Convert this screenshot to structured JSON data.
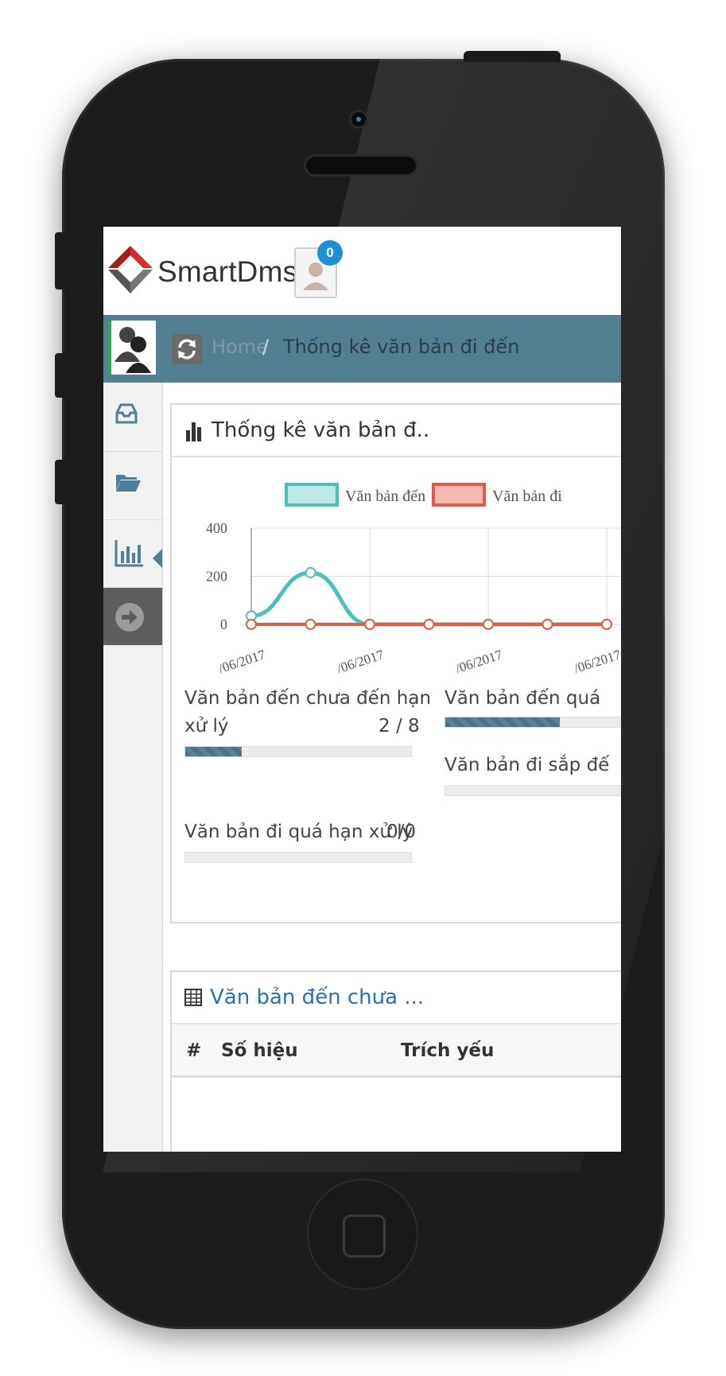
{
  "app": {
    "brand": "SmartDms",
    "notification_count": "0"
  },
  "breadcrumb": {
    "home": "Home",
    "separator": "/",
    "current": "Thống kê văn bản đi đến"
  },
  "stats_panel": {
    "title": "Thống kê văn bản đ..",
    "items": [
      {
        "label_line1": "Văn bản đến chưa đến hạn",
        "label_line2": "xử lý",
        "value": "2 / 8",
        "fraction": 0.25
      },
      {
        "label": "Văn bản đến quá",
        "fraction": 0.6
      },
      {
        "label": "Văn bản đi sắp đế",
        "fraction": 0
      },
      {
        "label": "Văn bản đi quá hạn xử lý",
        "value": "0/0",
        "fraction": 0
      }
    ]
  },
  "chart_data": {
    "type": "line",
    "legend": [
      "Văn bản đến",
      "Văn bản đi"
    ],
    "x": [
      "/06/2017",
      "",
      "/06/2017",
      "",
      "/06/2017",
      "",
      "/06/2017"
    ],
    "series": [
      {
        "name": "Văn bản đến",
        "color": "#4fbdb8",
        "values": [
          35,
          215,
          0,
          0,
          0,
          0,
          0
        ]
      },
      {
        "name": "Văn bản đi",
        "color": "#e05b4b",
        "values": [
          0,
          0,
          0,
          0,
          0,
          0,
          0
        ]
      }
    ],
    "yticks": [
      "400",
      "200",
      "0"
    ],
    "ylim": [
      0,
      400
    ]
  },
  "table_panel": {
    "title": "Văn bản đến chưa ...",
    "columns": [
      "#",
      "Số hiệu",
      "Trích yếu"
    ]
  },
  "colors": {
    "accent": "#537f93",
    "badge": "#1f8fd4",
    "progress": "#4b7287"
  }
}
